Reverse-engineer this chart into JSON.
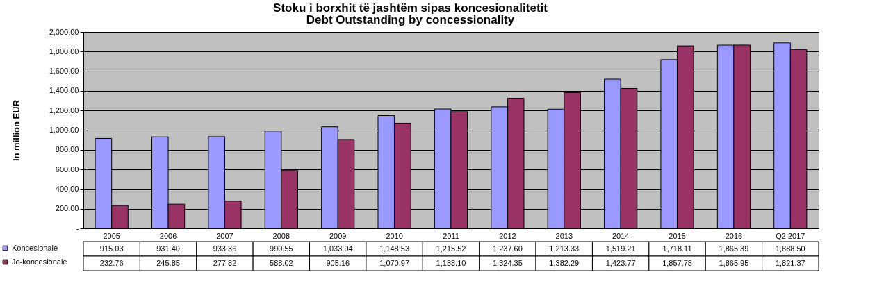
{
  "chart_data": {
    "type": "bar",
    "title": "Stoku i borxhit të jashtëm sipas koncesionalitetit",
    "subtitle": "Debt Outstanding by concessionality",
    "ylabel": "In million EUR",
    "categories": [
      "2005",
      "2006",
      "2007",
      "2008",
      "2009",
      "2010",
      "2011",
      "2012",
      "2013",
      "2014",
      "2015",
      "2016",
      "Q2 2017"
    ],
    "series": [
      {
        "name": "Koncesionale",
        "color": "#9999ff",
        "values": [
          915.03,
          931.4,
          933.36,
          990.55,
          1033.94,
          1148.53,
          1215.52,
          1237.6,
          1213.33,
          1519.21,
          1718.11,
          1865.39,
          1888.5
        ],
        "value_labels": [
          "915.03",
          "931.40",
          "933.36",
          "990.55",
          "1,033.94",
          "1,148.53",
          "1,215.52",
          "1,237.60",
          "1,213.33",
          "1,519.21",
          "1,718.11",
          "1,865.39",
          "1,888.50"
        ]
      },
      {
        "name": "Jo-koncesionale",
        "color": "#993366",
        "values": [
          232.76,
          245.85,
          277.82,
          588.02,
          905.16,
          1070.97,
          1188.1,
          1324.35,
          1382.29,
          1423.77,
          1857.78,
          1865.95,
          1821.37
        ],
        "value_labels": [
          "232.76",
          "245.85",
          "277.82",
          "588.02",
          "905.16",
          "1,070.97",
          "1,188.10",
          "1,324.35",
          "1,382.29",
          "1,423.77",
          "1,857.78",
          "1,865.95",
          "1,821.37"
        ]
      }
    ],
    "ylim": [
      0,
      2000
    ],
    "yticks": [
      {
        "value": 0,
        "label": "-"
      },
      {
        "value": 200,
        "label": "200.00"
      },
      {
        "value": 400,
        "label": "400.00"
      },
      {
        "value": 600,
        "label": "600.00"
      },
      {
        "value": 800,
        "label": "800.00"
      },
      {
        "value": 1000,
        "label": "1,000.00"
      },
      {
        "value": 1200,
        "label": "1,200.00"
      },
      {
        "value": 1400,
        "label": "1,400.00"
      },
      {
        "value": 1600,
        "label": "1,600.00"
      },
      {
        "value": 1800,
        "label": "1,800.00"
      },
      {
        "value": 2000,
        "label": "2,000.00"
      }
    ],
    "grid": "y",
    "legend": "bottom left"
  }
}
